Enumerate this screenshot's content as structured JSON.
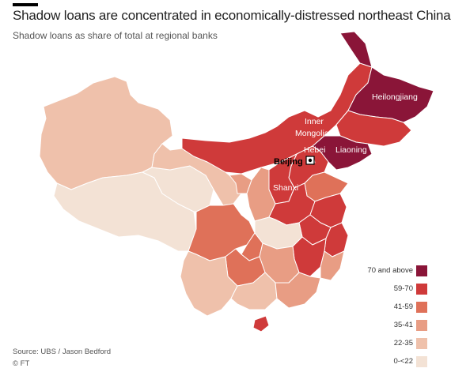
{
  "title": "Shadow loans are concentrated in economically-distressed northeast China",
  "subtitle": "Shadow loans as share of total at regional banks",
  "colors": {
    "c70": "#8a1538",
    "c59": "#cf3a3a",
    "c41": "#df7159",
    "c35": "#e89d84",
    "c22": "#efc1ab",
    "c0": "#f3e2d5",
    "border": "#ffffff"
  },
  "map_labels": {
    "heilongjiang": "Heilongjiang",
    "inner_mongolia_1": "Inner",
    "inner_mongolia_2": "Mongolia",
    "hebei": "Hebei",
    "liaoning": "Liaoning",
    "shanxi": "Shanxi",
    "beijing": "Beijing"
  },
  "legend": [
    {
      "label": "70 and above",
      "color": "#8a1538"
    },
    {
      "label": "59-70",
      "color": "#cf3a3a"
    },
    {
      "label": "41-59",
      "color": "#df7159"
    },
    {
      "label": "35-41",
      "color": "#e89d84"
    },
    {
      "label": "22-35",
      "color": "#efc1ab"
    },
    {
      "label": "0-<22",
      "color": "#f3e2d5"
    }
  ],
  "source": "Source: UBS / Jason Bedford",
  "credit": "© FT"
}
